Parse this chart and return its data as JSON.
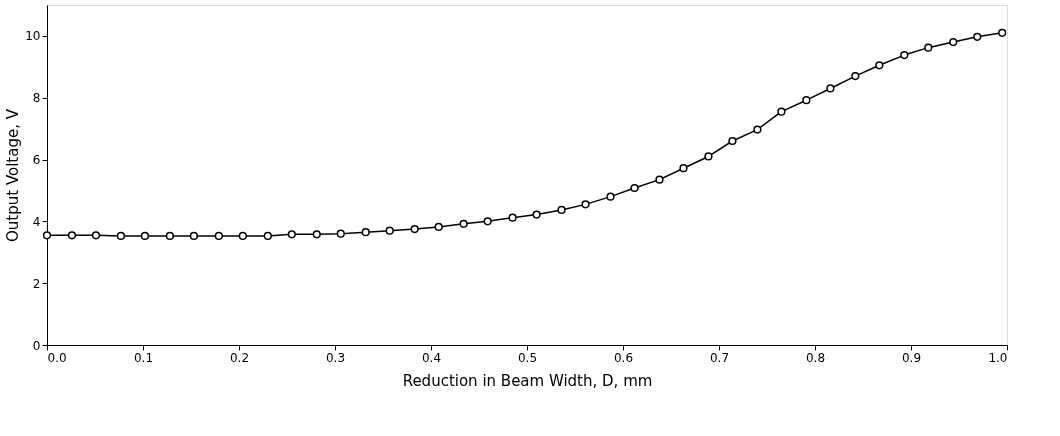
{
  "chart_data": {
    "type": "line",
    "xlabel": "Reduction in Beam Width, D, mm",
    "ylabel": "Output Voltage, V",
    "series": [
      {
        "color": "#000000",
        "x": [
          0.0,
          0.026,
          0.051,
          0.077,
          0.102,
          0.128,
          0.153,
          0.179,
          0.204,
          0.23,
          0.255,
          0.281,
          0.306,
          0.332,
          0.357,
          0.383,
          0.408,
          0.434,
          0.459,
          0.485,
          0.51,
          0.536,
          0.561,
          0.587,
          0.612,
          0.638,
          0.663,
          0.689,
          0.714,
          0.74,
          0.765,
          0.791,
          0.816,
          0.842,
          0.867,
          0.893,
          0.918,
          0.944,
          0.969,
          0.995
        ],
        "values": [
          3.55,
          3.55,
          3.55,
          3.53,
          3.53,
          3.53,
          3.53,
          3.53,
          3.53,
          3.53,
          3.58,
          3.58,
          3.6,
          3.65,
          3.7,
          3.75,
          3.82,
          3.92,
          4.0,
          4.12,
          4.22,
          4.37,
          4.55,
          4.8,
          5.08,
          5.35,
          5.72,
          6.1,
          6.6,
          6.97,
          7.55,
          7.92,
          8.3,
          8.7,
          9.05,
          9.38,
          9.62,
          9.8,
          9.97,
          10.1
        ]
      }
    ],
    "xlim": [
      0,
      1.0
    ],
    "xticks": [
      {
        "value": 0,
        "label": "0.0"
      },
      0.1,
      0.2,
      0.3,
      0.4,
      0.5,
      0.6,
      0.7,
      0.8,
      0.9,
      {
        "value": 1,
        "label": "1.0"
      }
    ],
    "ylim": [
      0,
      11
    ],
    "yticks": [
      0,
      2,
      4,
      6,
      8,
      10
    ],
    "marker": "circle",
    "grid": false
  }
}
